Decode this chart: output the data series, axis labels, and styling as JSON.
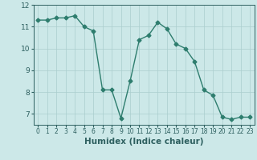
{
  "x": [
    0,
    1,
    2,
    3,
    4,
    5,
    6,
    7,
    8,
    9,
    10,
    11,
    12,
    13,
    14,
    15,
    16,
    17,
    18,
    19,
    20,
    21,
    22,
    23
  ],
  "y": [
    11.3,
    11.3,
    11.4,
    11.4,
    11.5,
    11.0,
    10.8,
    8.1,
    8.1,
    6.8,
    8.5,
    10.4,
    10.6,
    11.2,
    10.9,
    10.2,
    10.0,
    9.4,
    8.1,
    7.85,
    6.85,
    6.75,
    6.85,
    6.85
  ],
  "line_color": "#2e7d6e",
  "marker": "D",
  "marker_size": 2.5,
  "bg_color": "#cce8e8",
  "grid_color": "#aacece",
  "xlabel": "Humidex (Indice chaleur)",
  "xlim": [
    -0.5,
    23.5
  ],
  "ylim": [
    6.5,
    12.0
  ],
  "yticks": [
    7,
    8,
    9,
    10,
    11,
    12
  ],
  "xticks": [
    0,
    1,
    2,
    3,
    4,
    5,
    6,
    7,
    8,
    9,
    10,
    11,
    12,
    13,
    14,
    15,
    16,
    17,
    18,
    19,
    20,
    21,
    22,
    23
  ],
  "tick_color": "#2e6060",
  "xlabel_fontsize": 7.5,
  "ytick_fontsize": 6.5,
  "xtick_fontsize": 5.5
}
